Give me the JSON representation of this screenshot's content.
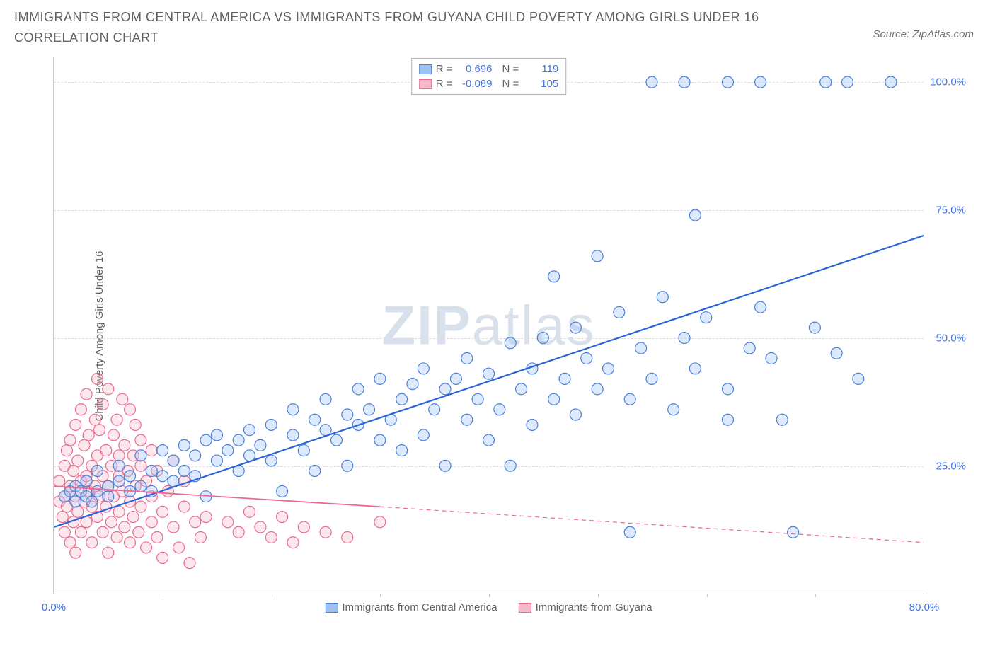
{
  "title": "IMMIGRANTS FROM CENTRAL AMERICA VS IMMIGRANTS FROM GUYANA CHILD POVERTY AMONG GIRLS UNDER 16 CORRELATION CHART",
  "source_text": "Source: ZipAtlas.com",
  "watermark": {
    "bold": "ZIP",
    "light": "atlas"
  },
  "ylabel": "Child Poverty Among Girls Under 16",
  "chart": {
    "type": "scatter",
    "background_color": "#ffffff",
    "grid_color": "#dcdcdc",
    "axis_color": "#c8c8c8",
    "tick_font_color": "#4472e0",
    "tick_fontsize": 15,
    "label_fontsize": 15,
    "title_fontsize": 18,
    "title_color": "#606060",
    "xlim": [
      0,
      80
    ],
    "ylim": [
      0,
      105
    ],
    "xticks": [
      {
        "v": 0,
        "label": "0.0%"
      },
      {
        "v": 80,
        "label": "80.0%"
      }
    ],
    "xtick_marks": [
      10,
      20,
      30,
      40,
      50,
      60,
      70
    ],
    "yticks": [
      {
        "v": 25,
        "label": "25.0%"
      },
      {
        "v": 50,
        "label": "50.0%"
      },
      {
        "v": 75,
        "label": "75.0%"
      },
      {
        "v": 100,
        "label": "100.0%"
      }
    ],
    "marker_radius": 8,
    "marker_stroke_width": 1.2,
    "marker_fill_opacity": 0.35,
    "series": [
      {
        "id": "central_america",
        "label": "Immigrants from Central America",
        "color_fill": "#9ec1f5",
        "color_stroke": "#4a7fd6",
        "line_color": "#2b63d8",
        "line_width": 2.2,
        "R": "0.696",
        "N": "119",
        "regression": {
          "x1": 0,
          "y1": 13,
          "x2": 80,
          "y2": 70
        },
        "points": [
          [
            1,
            19
          ],
          [
            1.5,
            20
          ],
          [
            2,
            18
          ],
          [
            2,
            21
          ],
          [
            2.5,
            20
          ],
          [
            3,
            19
          ],
          [
            3,
            22
          ],
          [
            3.5,
            18
          ],
          [
            4,
            20
          ],
          [
            4,
            24
          ],
          [
            5,
            21
          ],
          [
            5,
            19
          ],
          [
            6,
            22
          ],
          [
            6,
            25
          ],
          [
            7,
            20
          ],
          [
            7,
            23
          ],
          [
            8,
            21
          ],
          [
            8,
            27
          ],
          [
            9,
            24
          ],
          [
            9,
            20
          ],
          [
            10,
            23
          ],
          [
            10,
            28
          ],
          [
            11,
            26
          ],
          [
            11,
            22
          ],
          [
            12,
            24
          ],
          [
            12,
            29
          ],
          [
            13,
            27
          ],
          [
            13,
            23
          ],
          [
            14,
            30
          ],
          [
            14,
            19
          ],
          [
            15,
            26
          ],
          [
            15,
            31
          ],
          [
            16,
            28
          ],
          [
            17,
            30
          ],
          [
            17,
            24
          ],
          [
            18,
            32
          ],
          [
            18,
            27
          ],
          [
            19,
            29
          ],
          [
            20,
            33
          ],
          [
            20,
            26
          ],
          [
            21,
            20
          ],
          [
            22,
            31
          ],
          [
            22,
            36
          ],
          [
            23,
            28
          ],
          [
            24,
            34
          ],
          [
            24,
            24
          ],
          [
            25,
            32
          ],
          [
            25,
            38
          ],
          [
            26,
            30
          ],
          [
            27,
            35
          ],
          [
            27,
            25
          ],
          [
            28,
            33
          ],
          [
            28,
            40
          ],
          [
            29,
            36
          ],
          [
            30,
            30
          ],
          [
            30,
            42
          ],
          [
            31,
            34
          ],
          [
            32,
            38
          ],
          [
            32,
            28
          ],
          [
            33,
            41
          ],
          [
            34,
            31
          ],
          [
            34,
            44
          ],
          [
            35,
            36
          ],
          [
            36,
            40
          ],
          [
            36,
            25
          ],
          [
            37,
            42
          ],
          [
            38,
            34
          ],
          [
            38,
            46
          ],
          [
            39,
            38
          ],
          [
            40,
            43
          ],
          [
            40,
            30
          ],
          [
            41,
            36
          ],
          [
            42,
            49
          ],
          [
            42,
            25
          ],
          [
            43,
            40
          ],
          [
            44,
            44
          ],
          [
            44,
            33
          ],
          [
            45,
            50
          ],
          [
            46,
            38
          ],
          [
            46,
            62
          ],
          [
            47,
            42
          ],
          [
            48,
            52
          ],
          [
            48,
            35
          ],
          [
            49,
            46
          ],
          [
            50,
            40
          ],
          [
            50,
            66
          ],
          [
            51,
            44
          ],
          [
            52,
            55
          ],
          [
            53,
            38
          ],
          [
            53,
            12
          ],
          [
            54,
            48
          ],
          [
            55,
            42
          ],
          [
            56,
            58
          ],
          [
            57,
            36
          ],
          [
            58,
            50
          ],
          [
            59,
            44
          ],
          [
            59,
            74
          ],
          [
            60,
            54
          ],
          [
            62,
            40
          ],
          [
            62,
            34
          ],
          [
            64,
            48
          ],
          [
            65,
            56
          ],
          [
            66,
            46
          ],
          [
            67,
            34
          ],
          [
            68,
            12
          ],
          [
            70,
            52
          ],
          [
            72,
            47
          ],
          [
            74,
            42
          ],
          [
            55,
            100
          ],
          [
            58,
            100
          ],
          [
            62,
            100
          ],
          [
            65,
            100
          ],
          [
            71,
            100
          ],
          [
            73,
            100
          ],
          [
            77,
            100
          ]
        ]
      },
      {
        "id": "guyana",
        "label": "Immigrants from Guyana",
        "color_fill": "#f7b9ca",
        "color_stroke": "#e86a8f",
        "line_color": "#e86a8f",
        "line_width": 1.8,
        "R": "-0.089",
        "N": "105",
        "regression_solid": {
          "x1": 0,
          "y1": 21,
          "x2": 30,
          "y2": 17
        },
        "regression_dashed": {
          "x1": 30,
          "y1": 17,
          "x2": 80,
          "y2": 10
        },
        "points": [
          [
            0.5,
            18
          ],
          [
            0.5,
            22
          ],
          [
            0.8,
            15
          ],
          [
            1,
            19
          ],
          [
            1,
            25
          ],
          [
            1,
            12
          ],
          [
            1.2,
            28
          ],
          [
            1.2,
            17
          ],
          [
            1.5,
            21
          ],
          [
            1.5,
            10
          ],
          [
            1.5,
            30
          ],
          [
            1.8,
            24
          ],
          [
            1.8,
            14
          ],
          [
            2,
            19
          ],
          [
            2,
            33
          ],
          [
            2,
            8
          ],
          [
            2.2,
            26
          ],
          [
            2.2,
            16
          ],
          [
            2.5,
            22
          ],
          [
            2.5,
            12
          ],
          [
            2.5,
            36
          ],
          [
            2.8,
            18
          ],
          [
            2.8,
            29
          ],
          [
            3,
            23
          ],
          [
            3,
            14
          ],
          [
            3,
            39
          ],
          [
            3.2,
            20
          ],
          [
            3.2,
            31
          ],
          [
            3.5,
            17
          ],
          [
            3.5,
            25
          ],
          [
            3.5,
            10
          ],
          [
            3.8,
            34
          ],
          [
            3.8,
            21
          ],
          [
            4,
            27
          ],
          [
            4,
            15
          ],
          [
            4,
            42
          ],
          [
            4.2,
            19
          ],
          [
            4.2,
            32
          ],
          [
            4.5,
            23
          ],
          [
            4.5,
            12
          ],
          [
            4.5,
            37
          ],
          [
            4.8,
            28
          ],
          [
            4.8,
            17
          ],
          [
            5,
            21
          ],
          [
            5,
            40
          ],
          [
            5,
            8
          ],
          [
            5.3,
            25
          ],
          [
            5.3,
            14
          ],
          [
            5.5,
            31
          ],
          [
            5.5,
            19
          ],
          [
            5.8,
            34
          ],
          [
            5.8,
            11
          ],
          [
            6,
            23
          ],
          [
            6,
            27
          ],
          [
            6,
            16
          ],
          [
            6.3,
            38
          ],
          [
            6.3,
            20
          ],
          [
            6.5,
            13
          ],
          [
            6.5,
            29
          ],
          [
            6.8,
            24
          ],
          [
            7,
            18
          ],
          [
            7,
            36
          ],
          [
            7,
            10
          ],
          [
            7.3,
            27
          ],
          [
            7.3,
            15
          ],
          [
            7.5,
            21
          ],
          [
            7.5,
            33
          ],
          [
            7.8,
            12
          ],
          [
            8,
            25
          ],
          [
            8,
            17
          ],
          [
            8,
            30
          ],
          [
            8.5,
            9
          ],
          [
            8.5,
            22
          ],
          [
            9,
            14
          ],
          [
            9,
            28
          ],
          [
            9,
            19
          ],
          [
            9.5,
            11
          ],
          [
            9.5,
            24
          ],
          [
            10,
            16
          ],
          [
            10,
            7
          ],
          [
            10.5,
            20
          ],
          [
            11,
            13
          ],
          [
            11,
            26
          ],
          [
            11.5,
            9
          ],
          [
            12,
            17
          ],
          [
            12,
            22
          ],
          [
            12.5,
            6
          ],
          [
            13,
            14
          ],
          [
            13.5,
            11
          ],
          [
            14,
            15
          ],
          [
            16,
            14
          ],
          [
            17,
            12
          ],
          [
            18,
            16
          ],
          [
            19,
            13
          ],
          [
            20,
            11
          ],
          [
            21,
            15
          ],
          [
            22,
            10
          ],
          [
            23,
            13
          ],
          [
            25,
            12
          ],
          [
            27,
            11
          ],
          [
            30,
            14
          ]
        ]
      }
    ]
  },
  "stats_box": {
    "rows": [
      {
        "series": 0,
        "r_prefix": "R =",
        "n_prefix": "N ="
      },
      {
        "series": 1,
        "r_prefix": "R =",
        "n_prefix": "N ="
      }
    ]
  }
}
